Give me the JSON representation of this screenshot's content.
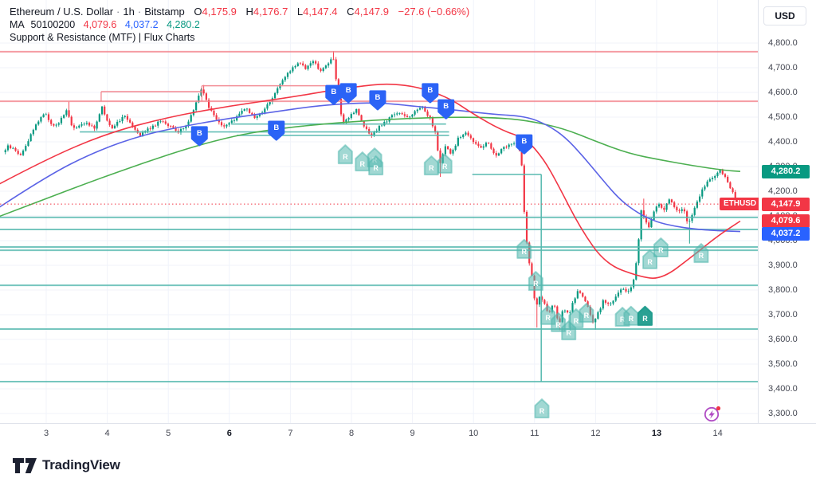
{
  "header": {
    "title": "Ethereum / U.S. Dollar",
    "timeframe": "1h",
    "exchange": "Bitstamp",
    "ohlc": {
      "o_label": "O",
      "o": "4,175.9",
      "h_label": "H",
      "h": "4,176.7",
      "l_label": "L",
      "l": "4,147.4",
      "c_label": "C",
      "c": "4,147.9",
      "change": "−27.6 (−0.66%)"
    },
    "ma_row": {
      "label": "MA",
      "lengths": "50100200",
      "ma50": "4,079.6",
      "ma100": "4,037.2",
      "ma200": "4,280.2"
    },
    "indicator_row": "Support & Resistance (MTF) | Flux Charts"
  },
  "price_axis": {
    "currency": "USD",
    "ticks": [
      {
        "price": 4800,
        "label": "4,800.0"
      },
      {
        "price": 4700,
        "label": "4,700.0"
      },
      {
        "price": 4600,
        "label": "4,600.0"
      },
      {
        "price": 4500,
        "label": "4,500.0"
      },
      {
        "price": 4400,
        "label": "4,400.0"
      },
      {
        "price": 4300,
        "label": "4,300.0"
      },
      {
        "price": 4200,
        "label": "4,200.0"
      },
      {
        "price": 4100,
        "label": "4,100.0"
      },
      {
        "price": 4000,
        "label": "4,000.0"
      },
      {
        "price": 3900,
        "label": "3,900.0"
      },
      {
        "price": 3800,
        "label": "3,800.0"
      },
      {
        "price": 3700,
        "label": "3,700.0"
      },
      {
        "price": 3600,
        "label": "3,600.0"
      },
      {
        "price": 3500,
        "label": "3,500.0"
      },
      {
        "price": 3400,
        "label": "3,400.0"
      },
      {
        "price": 3300,
        "label": "3,300.0"
      }
    ],
    "badges": [
      {
        "price": 4280.2,
        "label": "4,280.2",
        "bg": "#089981"
      },
      {
        "price": 4147.9,
        "label": "4,147.9",
        "bg": "#f23645",
        "tag": "ETHUSD"
      },
      {
        "price": 4079.6,
        "label": "4,079.6",
        "bg": "#f23645"
      },
      {
        "price": 4037.2,
        "label": "4,037.2",
        "bg": "#2962ff",
        "nudge": 3
      }
    ]
  },
  "time_axis": {
    "days": [
      {
        "day": 3,
        "label": "3"
      },
      {
        "day": 4,
        "label": "4"
      },
      {
        "day": 5,
        "label": "5"
      },
      {
        "day": 6,
        "label": "6",
        "bold": true
      },
      {
        "day": 7,
        "label": "7"
      },
      {
        "day": 8,
        "label": "8"
      },
      {
        "day": 9,
        "label": "9"
      },
      {
        "day": 10,
        "label": "10"
      },
      {
        "day": 11,
        "label": "11"
      },
      {
        "day": 12,
        "label": "12"
      },
      {
        "day": 13,
        "label": "13",
        "bold": true
      },
      {
        "day": 14,
        "label": "14"
      }
    ]
  },
  "footer": {
    "brand": "TradingView"
  },
  "chart_data": {
    "type": "candlestick",
    "title": "Ethereum / U.S. Dollar · 1h · Bitstamp",
    "symbol": "ETHUSD",
    "interval": "1h",
    "legend_position": "top-left",
    "grid": true,
    "x_domain": [
      2.31,
      14.38
    ],
    "price_domain": [
      3261,
      4974
    ],
    "day_ticks": [
      3,
      4,
      5,
      6,
      7,
      8,
      9,
      10,
      11,
      12,
      13,
      14
    ],
    "price_ticks": [
      3300,
      3400,
      3500,
      3600,
      3700,
      3800,
      3900,
      4000,
      4100,
      4200,
      4300,
      4400,
      4500,
      4600,
      4700,
      4800
    ],
    "colors": {
      "up": "#089981",
      "down": "#f23645",
      "ma50": "#f23645",
      "ma100": "#5b63e6",
      "ma200": "#4caf50",
      "sr_teal": "#54b8ae",
      "sr_red": "#f2838c",
      "grid": "#f0f3fa",
      "buy_marker": "#2b63f6",
      "retest_marker": "#54b8ae",
      "retest_marker_dark": "#1f9c8d",
      "current_price": "#f23645"
    },
    "price_path": [
      [
        2.31,
        4358
      ],
      [
        2.4,
        4382
      ],
      [
        2.5,
        4368
      ],
      [
        2.6,
        4345
      ],
      [
        2.7,
        4390
      ],
      [
        2.8,
        4448
      ],
      [
        2.92,
        4495
      ],
      [
        3.0,
        4522
      ],
      [
        3.08,
        4478
      ],
      [
        3.18,
        4462
      ],
      [
        3.28,
        4500
      ],
      [
        3.36,
        4528
      ],
      [
        3.46,
        4452
      ],
      [
        3.58,
        4465
      ],
      [
        3.7,
        4478
      ],
      [
        3.82,
        4448
      ],
      [
        3.93,
        4548
      ],
      [
        4.0,
        4498
      ],
      [
        4.08,
        4455
      ],
      [
        4.18,
        4475
      ],
      [
        4.3,
        4510
      ],
      [
        4.42,
        4472
      ],
      [
        4.55,
        4428
      ],
      [
        4.68,
        4450
      ],
      [
        4.8,
        4468
      ],
      [
        4.92,
        4488
      ],
      [
        5.05,
        4462
      ],
      [
        5.18,
        4438
      ],
      [
        5.3,
        4462
      ],
      [
        5.42,
        4520
      ],
      [
        5.52,
        4592
      ],
      [
        5.58,
        4618
      ],
      [
        5.68,
        4542
      ],
      [
        5.8,
        4498
      ],
      [
        5.92,
        4458
      ],
      [
        6.05,
        4478
      ],
      [
        6.18,
        4512
      ],
      [
        6.3,
        4542
      ],
      [
        6.42,
        4495
      ],
      [
        6.55,
        4518
      ],
      [
        6.68,
        4562
      ],
      [
        6.8,
        4612
      ],
      [
        6.92,
        4656
      ],
      [
        7.05,
        4698
      ],
      [
        7.15,
        4722
      ],
      [
        7.28,
        4695
      ],
      [
        7.4,
        4732
      ],
      [
        7.5,
        4682
      ],
      [
        7.6,
        4708
      ],
      [
        7.72,
        4748
      ],
      [
        7.78,
        4625
      ],
      [
        7.84,
        4515
      ],
      [
        7.9,
        4478
      ],
      [
        8.0,
        4508
      ],
      [
        8.1,
        4528
      ],
      [
        8.22,
        4462
      ],
      [
        8.35,
        4422
      ],
      [
        8.45,
        4455
      ],
      [
        8.58,
        4482
      ],
      [
        8.7,
        4508
      ],
      [
        8.82,
        4518
      ],
      [
        8.95,
        4498
      ],
      [
        9.05,
        4522
      ],
      [
        9.18,
        4542
      ],
      [
        9.3,
        4498
      ],
      [
        9.4,
        4432
      ],
      [
        9.47,
        4302
      ],
      [
        9.55,
        4388
      ],
      [
        9.65,
        4348
      ],
      [
        9.78,
        4418
      ],
      [
        9.9,
        4438
      ],
      [
        10.0,
        4405
      ],
      [
        10.12,
        4375
      ],
      [
        10.25,
        4398
      ],
      [
        10.38,
        4342
      ],
      [
        10.5,
        4375
      ],
      [
        10.62,
        4392
      ],
      [
        10.72,
        4398
      ],
      [
        10.8,
        4355
      ],
      [
        10.86,
        4072
      ],
      [
        10.92,
        3932
      ],
      [
        10.98,
        3848
      ],
      [
        11.04,
        3718
      ],
      [
        11.1,
        3772
      ],
      [
        11.18,
        3742
      ],
      [
        11.26,
        3702
      ],
      [
        11.34,
        3748
      ],
      [
        11.42,
        3662
      ],
      [
        11.5,
        3728
      ],
      [
        11.58,
        3698
      ],
      [
        11.66,
        3758
      ],
      [
        11.74,
        3798
      ],
      [
        11.82,
        3772
      ],
      [
        11.9,
        3732
      ],
      [
        11.98,
        3662
      ],
      [
        12.06,
        3705
      ],
      [
        12.15,
        3758
      ],
      [
        12.25,
        3738
      ],
      [
        12.35,
        3778
      ],
      [
        12.45,
        3802
      ],
      [
        12.55,
        3792
      ],
      [
        12.63,
        3818
      ],
      [
        12.7,
        3938
      ],
      [
        12.77,
        4125
      ],
      [
        12.83,
        4082
      ],
      [
        12.9,
        4052
      ],
      [
        12.98,
        4122
      ],
      [
        13.06,
        4148
      ],
      [
        13.14,
        4118
      ],
      [
        13.22,
        4172
      ],
      [
        13.3,
        4142
      ],
      [
        13.38,
        4112
      ],
      [
        13.46,
        4138
      ],
      [
        13.54,
        4062
      ],
      [
        13.62,
        4122
      ],
      [
        13.7,
        4168
      ],
      [
        13.78,
        4208
      ],
      [
        13.86,
        4238
      ],
      [
        13.94,
        4258
      ],
      [
        14.02,
        4274
      ],
      [
        14.08,
        4284
      ],
      [
        14.16,
        4246
      ],
      [
        14.24,
        4206
      ],
      [
        14.3,
        4174
      ],
      [
        14.37,
        4148
      ]
    ],
    "spikes": [
      {
        "day": 3.36,
        "high": 4563
      },
      {
        "day": 5.57,
        "high": 4630
      },
      {
        "day": 7.72,
        "high": 4767
      },
      {
        "day": 9.47,
        "low": 4258
      },
      {
        "day": 10.9,
        "low": 3900
      },
      {
        "day": 11.05,
        "low": 3648
      },
      {
        "day": 11.43,
        "low": 3638
      },
      {
        "day": 11.57,
        "low": 3628
      },
      {
        "day": 11.98,
        "low": 3640
      },
      {
        "day": 12.77,
        "high": 4170
      },
      {
        "day": 13.55,
        "low": 3988
      },
      {
        "day": 14.08,
        "high": 4291
      }
    ],
    "ma50": {
      "name": "MA 50",
      "current": 4079.6,
      "points": [
        [
          2.2,
          4225
        ],
        [
          3.0,
          4330
        ],
        [
          4.0,
          4435
        ],
        [
          5.0,
          4500
        ],
        [
          6.0,
          4545
        ],
        [
          7.0,
          4580
        ],
        [
          7.7,
          4610
        ],
        [
          8.3,
          4630
        ],
        [
          8.65,
          4635
        ],
        [
          9.1,
          4622
        ],
        [
          9.6,
          4578
        ],
        [
          10.0,
          4512
        ],
        [
          10.45,
          4448
        ],
        [
          10.86,
          4413
        ],
        [
          11.15,
          4330
        ],
        [
          11.38,
          4229
        ],
        [
          11.75,
          4050
        ],
        [
          12.16,
          3906
        ],
        [
          12.7,
          3855
        ],
        [
          13.08,
          3842
        ],
        [
          13.6,
          3939
        ],
        [
          14.0,
          4019
        ],
        [
          14.37,
          4079
        ]
      ]
    },
    "ma100": {
      "name": "MA 100",
      "current": 4037.2,
      "points": [
        [
          2.2,
          4130
        ],
        [
          3.0,
          4260
        ],
        [
          3.8,
          4360
        ],
        [
          4.6,
          4430
        ],
        [
          5.4,
          4470
        ],
        [
          6.0,
          4495
        ],
        [
          6.7,
          4520
        ],
        [
          7.4,
          4545
        ],
        [
          8.0,
          4556
        ],
        [
          8.5,
          4558
        ],
        [
          9.0,
          4545
        ],
        [
          9.7,
          4529
        ],
        [
          10.3,
          4512
        ],
        [
          10.86,
          4503
        ],
        [
          11.2,
          4470
        ],
        [
          11.5,
          4420
        ],
        [
          11.8,
          4340
        ],
        [
          12.1,
          4250
        ],
        [
          12.4,
          4165
        ],
        [
          12.7,
          4110
        ],
        [
          13.0,
          4075
        ],
        [
          13.3,
          4058
        ],
        [
          13.6,
          4047
        ],
        [
          14.0,
          4040
        ],
        [
          14.37,
          4037
        ]
      ]
    },
    "ma200": {
      "name": "MA 200",
      "current": 4280.2,
      "points": [
        [
          2.2,
          4095
        ],
        [
          3.0,
          4170
        ],
        [
          3.8,
          4245
        ],
        [
          4.6,
          4315
        ],
        [
          5.4,
          4380
        ],
        [
          6.1,
          4425
        ],
        [
          6.7,
          4450
        ],
        [
          7.5,
          4472
        ],
        [
          8.5,
          4490
        ],
        [
          9.3,
          4498
        ],
        [
          9.9,
          4500
        ],
        [
          10.4,
          4497
        ],
        [
          10.86,
          4487
        ],
        [
          11.47,
          4455
        ],
        [
          12.0,
          4402
        ],
        [
          12.55,
          4352
        ],
        [
          13.08,
          4326
        ],
        [
          13.6,
          4303
        ],
        [
          14.1,
          4285
        ],
        [
          14.37,
          4280
        ]
      ]
    },
    "sr_lines": [
      {
        "price": 4765,
        "color": "red"
      },
      {
        "price": 4564,
        "color": "red"
      },
      {
        "price": 4094,
        "color": "teal"
      },
      {
        "price": 4045,
        "color": "teal"
      },
      {
        "price": 3974,
        "color": "teal"
      },
      {
        "price": 3961,
        "color": "teal"
      },
      {
        "price": 3819,
        "color": "teal"
      },
      {
        "price": 3642,
        "color": "teal"
      },
      {
        "price": 3429,
        "color": "teal"
      }
    ],
    "sr_segments": [
      {
        "from_day": 6.03,
        "to_day": 9.55,
        "price": 4472
      },
      {
        "from_day": 3.55,
        "to_day": 9.6,
        "price": 4440
      },
      {
        "from_day": 6.12,
        "to_day": 9.6,
        "price": 4426
      },
      {
        "from_day": 9.98,
        "to_day": 11.11,
        "price": 4268
      }
    ],
    "sr_vertical": {
      "day": 11.11,
      "from_price": 4268,
      "to_price": 3429
    },
    "resistance_boxes": [
      {
        "from_day": 3.9,
        "to_day": 5.55,
        "top_price": 4603,
        "base_price": 4564
      },
      {
        "from_day": 5.55,
        "to_day": 7.79,
        "top_price": 4627,
        "base_price": 4564
      }
    ],
    "current_price": {
      "value": 4147.9,
      "label": "4,147.9",
      "tag": "ETHUSD"
    },
    "markers_buy": [
      {
        "day": 5.51,
        "price": 4423
      },
      {
        "day": 6.77,
        "price": 4445
      },
      {
        "day": 7.71,
        "price": 4590
      },
      {
        "day": 7.95,
        "price": 4597
      },
      {
        "day": 8.43,
        "price": 4568
      },
      {
        "day": 9.29,
        "price": 4597
      },
      {
        "day": 9.55,
        "price": 4532
      },
      {
        "day": 10.83,
        "price": 4390
      }
    ],
    "markers_retest": [
      {
        "day": 7.9,
        "price": 4348
      },
      {
        "day": 8.18,
        "price": 4319
      },
      {
        "day": 8.38,
        "price": 4335
      },
      {
        "day": 8.4,
        "price": 4303
      },
      {
        "day": 9.31,
        "price": 4303
      },
      {
        "day": 9.53,
        "price": 4310
      },
      {
        "day": 10.83,
        "price": 3965
      },
      {
        "day": 11.02,
        "price": 3835
      },
      {
        "day": 11.22,
        "price": 3697
      },
      {
        "day": 11.39,
        "price": 3668
      },
      {
        "day": 11.56,
        "price": 3635
      },
      {
        "day": 11.68,
        "price": 3684
      },
      {
        "day": 11.85,
        "price": 3706
      },
      {
        "day": 12.44,
        "price": 3690
      },
      {
        "day": 12.58,
        "price": 3694
      },
      {
        "day": 12.81,
        "price": 3694,
        "dark": true
      },
      {
        "day": 12.89,
        "price": 3923
      },
      {
        "day": 13.07,
        "price": 3971
      },
      {
        "day": 13.73,
        "price": 3948
      },
      {
        "day": 11.12,
        "price": 3319
      }
    ]
  }
}
